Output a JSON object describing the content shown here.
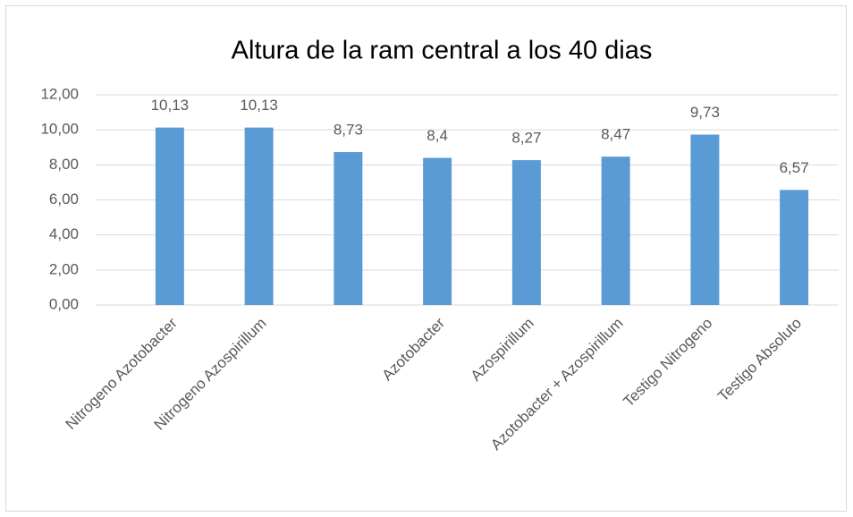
{
  "chart_data": {
    "type": "bar",
    "title": "Altura de la ram central a los 40 dias",
    "categories": [
      "Nitrogeno Azotobacter",
      "Nitrogeno Azospirillum",
      null,
      "Azotobacter",
      "Azospirillum",
      "Azotobacter + Azospirillum",
      "Testigo Nitrogeno",
      "Testigo Absoluto"
    ],
    "values": [
      10.13,
      10.13,
      8.73,
      8.4,
      8.27,
      8.47,
      9.73,
      6.57
    ],
    "value_labels": [
      "10,13",
      "10,13",
      "8,73",
      "8,4",
      "8,27",
      "8,47",
      "9,73",
      "6,57"
    ],
    "color": "#5b9bd5",
    "ylim": [
      0,
      12
    ],
    "yticks": [
      {
        "value": 0,
        "label": "0,00"
      },
      {
        "value": 2,
        "label": "2,00"
      },
      {
        "value": 4,
        "label": "4,00"
      },
      {
        "value": 6,
        "label": "6,00"
      },
      {
        "value": 8,
        "label": "8,00"
      },
      {
        "value": 10,
        "label": "10,00"
      },
      {
        "value": 12,
        "label": "12,00"
      }
    ],
    "grid": true
  }
}
